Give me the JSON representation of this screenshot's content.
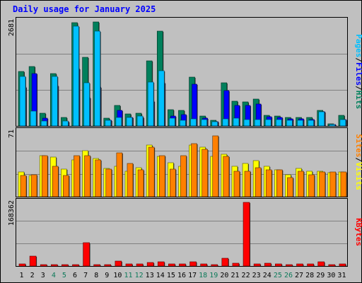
{
  "chart_data": {
    "type": "bar",
    "title": "Daily usage for January 2025",
    "x": [
      "1",
      "2",
      "3",
      "4",
      "5",
      "6",
      "7",
      "8",
      "9",
      "10",
      "11",
      "12",
      "13",
      "14",
      "15",
      "16",
      "17",
      "18",
      "19",
      "20",
      "21",
      "22",
      "23",
      "24",
      "25",
      "26",
      "27",
      "28",
      "29",
      "30",
      "31"
    ],
    "weekend_days": [
      "4",
      "5",
      "11",
      "12",
      "18",
      "19",
      "25",
      "26"
    ],
    "colors": {
      "weekday": "#000000",
      "weekend": "#0d7a5a"
    },
    "grid": true,
    "legend": "right-vertical",
    "panels": [
      {
        "name": "pages-files-hits",
        "max_label": "2681",
        "ylim": [
          0,
          2681
        ],
        "legend_labels": [
          {
            "text": "Pages",
            "color": "#00c0ff"
          },
          {
            "text": "/",
            "color": "#000000"
          },
          {
            "text": "Files",
            "color": "#0000ff"
          },
          {
            "text": "/",
            "color": "#000000"
          },
          {
            "text": "Hits",
            "color": "#00805c"
          }
        ],
        "series": [
          {
            "name": "Hits",
            "color": "#00805c",
            "values": [
              1400,
              1520,
              330,
              1340,
              220,
              2640,
              1760,
              2670,
              200,
              520,
              310,
              320,
              1670,
              2420,
              410,
              390,
              1250,
              250,
              150,
              1100,
              630,
              610,
              690,
              270,
              260,
              210,
              210,
              210,
              400,
              50,
              270
            ]
          },
          {
            "name": "Files",
            "color": "#0000ff",
            "values": [
              1000,
              1340,
              200,
              1040,
              100,
              1460,
              720,
              1000,
              150,
              400,
              210,
              210,
              640,
              1100,
              260,
              290,
              1060,
              200,
              100,
              900,
              530,
              520,
              570,
              230,
              210,
              180,
              180,
              160,
              370,
              40,
              170
            ]
          },
          {
            "name": "Pages",
            "color": "#00c0ff",
            "values": [
              1270,
              380,
              130,
              1260,
              120,
              2560,
              1110,
              2420,
              150,
              210,
              210,
              250,
              1130,
              1420,
              200,
              150,
              180,
              170,
              110,
              180,
              200,
              170,
              170,
              160,
              170,
              150,
              150,
              140,
              370,
              30,
              160
            ]
          }
        ]
      },
      {
        "name": "visits-sites",
        "max_label": "71",
        "ylim": [
          0,
          71
        ],
        "legend_labels": [
          {
            "text": "Sites",
            "color": "#ff8000"
          },
          {
            "text": "/",
            "color": "#000000"
          },
          {
            "text": "Visits",
            "color": "#ffff00"
          }
        ],
        "series": [
          {
            "name": "Visits",
            "color": "#ffff00",
            "values": [
              27,
              23,
              45,
              43,
              30,
              40,
              50,
              42,
              31,
              33,
              28,
              32,
              56,
              44,
              37,
              33,
              56,
              54,
              44,
              46,
              33,
              36,
              39,
              33,
              29,
              24,
              31,
              28,
              28,
              26,
              27
            ]
          },
          {
            "name": "Sites",
            "color": "#ff8000",
            "values": [
              23,
              24,
              45,
              33,
              23,
              45,
              45,
              40,
              30,
              48,
              36,
              29,
              54,
              45,
              30,
              45,
              58,
              52,
              66,
              44,
              28,
              28,
              32,
              29,
              29,
              21,
              28,
              24,
              27,
              27,
              27
            ]
          }
        ]
      },
      {
        "name": "kbytes",
        "max_label": "168362",
        "ylim": [
          0,
          168362
        ],
        "legend_labels": [
          {
            "text": "KBytes",
            "color": "#ff0000"
          }
        ],
        "series": [
          {
            "name": "KBytes",
            "color": "#ff0000",
            "values": [
              5500,
              26000,
              3500,
              3000,
              4000,
              3000,
              62000,
              4000,
              4000,
              13000,
              6000,
              5000,
              9000,
              11000,
              6000,
              5000,
              11000,
              5000,
              3000,
              21000,
              8000,
              168362,
              6000,
              7000,
              5000,
              4000,
              5500,
              5500,
              11000,
              3000,
              5000
            ]
          }
        ]
      }
    ]
  }
}
